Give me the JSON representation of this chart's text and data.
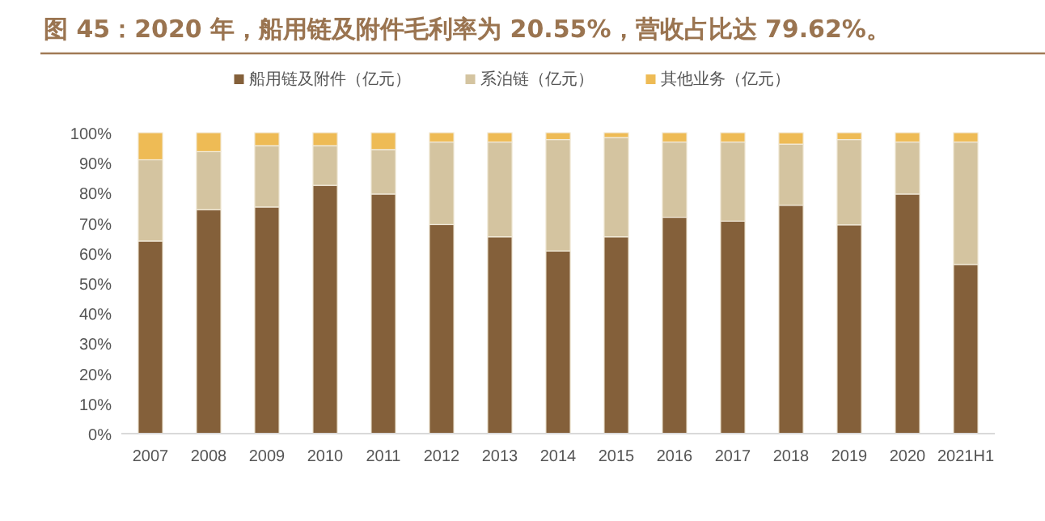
{
  "chart_data": {
    "type": "bar",
    "stacked": true,
    "title": "图 45：2020 年，船用链及附件毛利率为 20.55%，营收占比达 79.62%。",
    "categories": [
      "2007",
      "2008",
      "2009",
      "2010",
      "2011",
      "2012",
      "2013",
      "2014",
      "2015",
      "2016",
      "2017",
      "2018",
      "2019",
      "2020",
      "2021H1"
    ],
    "series": [
      {
        "name": "船用链及附件（亿元）",
        "color": "#84603a",
        "values": [
          64.0,
          74.4,
          75.3,
          82.5,
          79.6,
          69.5,
          65.4,
          60.7,
          65.4,
          71.9,
          70.6,
          75.9,
          69.4,
          79.6,
          56.2
        ]
      },
      {
        "name": "系泊链（亿元）",
        "color": "#d4c4a0",
        "values": [
          27.0,
          19.3,
          20.4,
          13.2,
          14.8,
          27.4,
          31.5,
          37.0,
          33.0,
          25.0,
          26.3,
          20.3,
          28.3,
          17.3,
          40.7
        ]
      },
      {
        "name": "其他业务（亿元）",
        "color": "#eebb55",
        "values": [
          9.0,
          6.3,
          4.3,
          4.3,
          5.6,
          3.1,
          3.1,
          2.3,
          1.6,
          3.1,
          3.1,
          3.8,
          2.3,
          3.1,
          3.1
        ]
      }
    ],
    "ylim": [
      0,
      100
    ],
    "yticks": [
      {
        "value": 0,
        "label": "0%"
      },
      {
        "value": 10,
        "label": "10%"
      },
      {
        "value": 20,
        "label": "20%"
      },
      {
        "value": 30,
        "label": "30%"
      },
      {
        "value": 40,
        "label": "40%"
      },
      {
        "value": 50,
        "label": "50%"
      },
      {
        "value": 60,
        "label": "60%"
      },
      {
        "value": 70,
        "label": "70%"
      },
      {
        "value": 80,
        "label": "80%"
      },
      {
        "value": 90,
        "label": "90%"
      },
      {
        "value": 100,
        "label": "100%"
      }
    ],
    "legend": "top"
  }
}
